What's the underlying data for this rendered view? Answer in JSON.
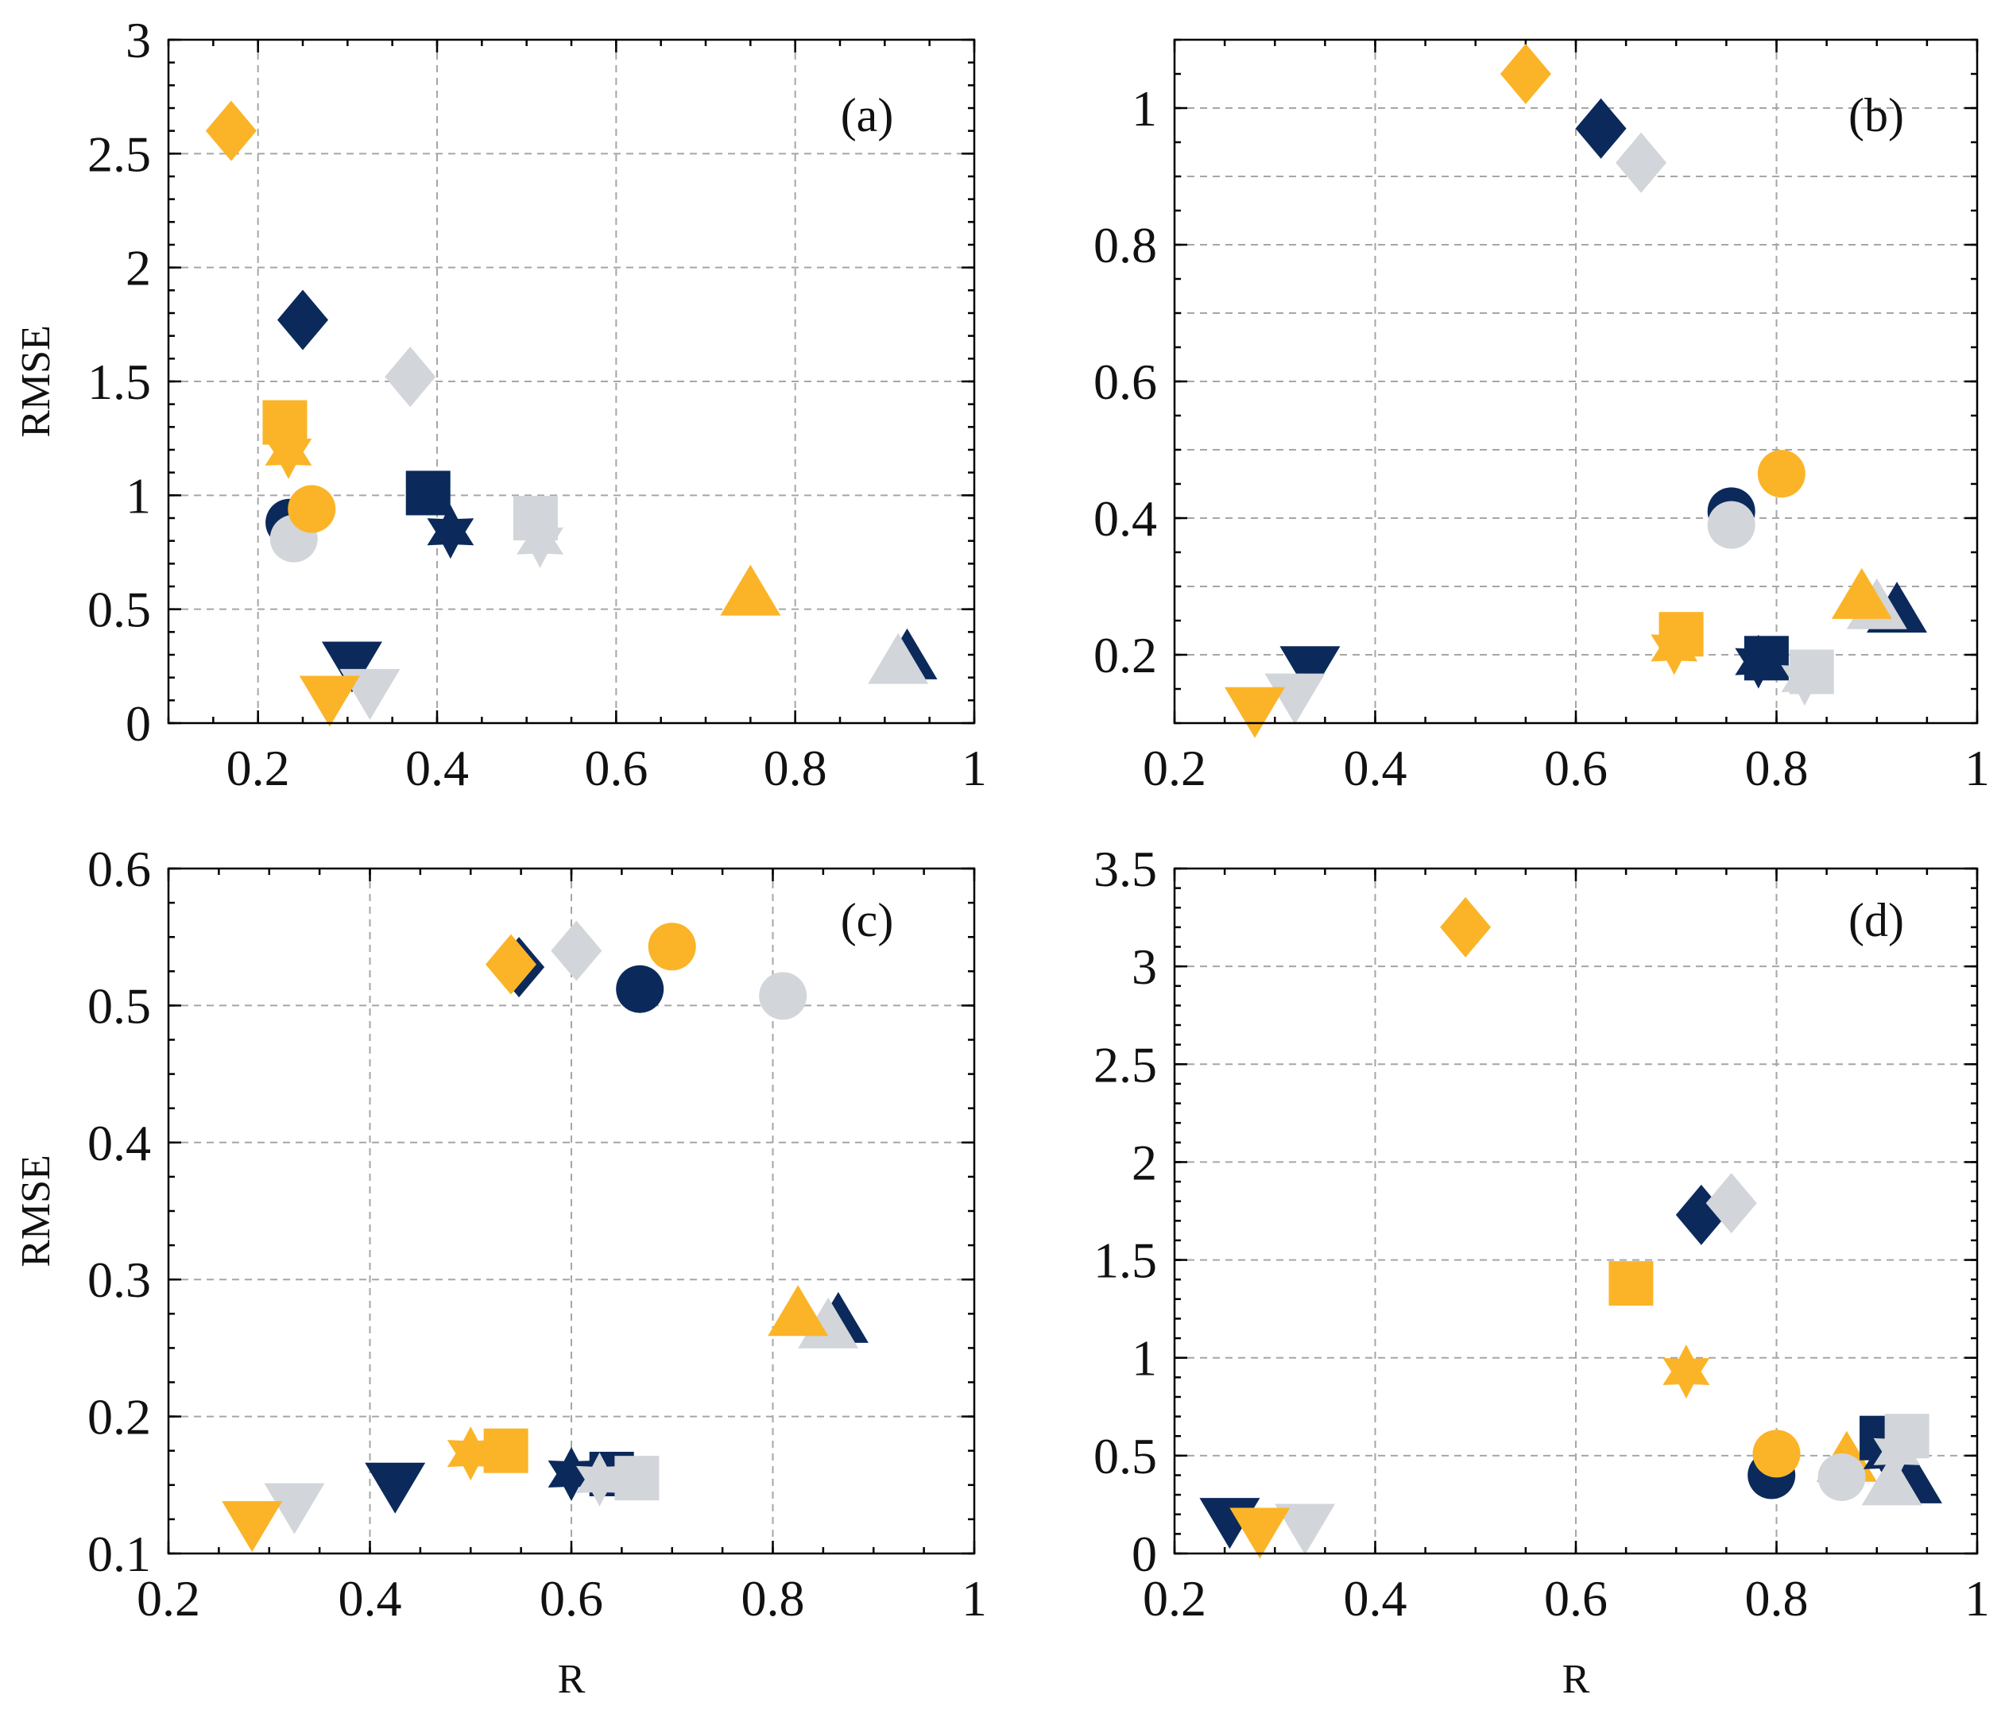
{
  "colors": {
    "navy": "#0b2a5b",
    "gold": "#fbb427",
    "gray": "#d2d5da"
  },
  "chart_data": [
    {
      "panel": "(a)",
      "type": "scatter",
      "xlabel": "",
      "ylabel": "RMSE",
      "xlim": [
        0.1,
        1.0
      ],
      "ylim": [
        0,
        3
      ],
      "xticks": [
        0.2,
        0.4,
        0.6,
        0.8,
        1
      ],
      "xtick_labels": [
        "0.2",
        "0.4",
        "0.6",
        "0.8",
        "1"
      ],
      "yticks": [
        0,
        0.5,
        1,
        1.5,
        2,
        2.5,
        3
      ],
      "ytick_labels": [
        "0",
        "0.5",
        "1",
        "1.5",
        "2",
        "2.5",
        "3"
      ],
      "xminor": 0.05,
      "yminor": 0.1,
      "grid": true,
      "points": [
        {
          "shape": "diamond",
          "color": "gold",
          "x": 0.17,
          "y": 2.6
        },
        {
          "shape": "diamond",
          "color": "navy",
          "x": 0.25,
          "y": 1.77
        },
        {
          "shape": "diamond",
          "color": "gray",
          "x": 0.37,
          "y": 1.52
        },
        {
          "shape": "square",
          "color": "gold",
          "x": 0.23,
          "y": 1.32
        },
        {
          "shape": "star",
          "color": "gold",
          "x": 0.234,
          "y": 1.19
        },
        {
          "shape": "circle",
          "color": "navy",
          "x": 0.235,
          "y": 0.88
        },
        {
          "shape": "circle",
          "color": "gray",
          "x": 0.24,
          "y": 0.81
        },
        {
          "shape": "circle",
          "color": "gold",
          "x": 0.26,
          "y": 0.94
        },
        {
          "shape": "square",
          "color": "navy",
          "x": 0.39,
          "y": 1.01
        },
        {
          "shape": "star",
          "color": "navy",
          "x": 0.415,
          "y": 0.84
        },
        {
          "shape": "square",
          "color": "gray",
          "x": 0.51,
          "y": 0.9
        },
        {
          "shape": "star",
          "color": "gray",
          "x": 0.515,
          "y": 0.8
        },
        {
          "shape": "triangle-up",
          "color": "gold",
          "x": 0.75,
          "y": 0.57
        },
        {
          "shape": "triangle-up",
          "color": "navy",
          "x": 0.925,
          "y": 0.29
        },
        {
          "shape": "triangle-up",
          "color": "gray",
          "x": 0.915,
          "y": 0.27
        },
        {
          "shape": "triangle-down",
          "color": "navy",
          "x": 0.305,
          "y": 0.26
        },
        {
          "shape": "triangle-down",
          "color": "gray",
          "x": 0.325,
          "y": 0.14
        },
        {
          "shape": "triangle-down",
          "color": "gold",
          "x": 0.28,
          "y": 0.11
        }
      ]
    },
    {
      "panel": "(b)",
      "type": "scatter",
      "xlabel": "",
      "ylabel": "",
      "xlim": [
        0.2,
        1.0
      ],
      "ylim": [
        0.1,
        1.1
      ],
      "xticks": [
        0.2,
        0.4,
        0.6,
        0.8,
        1
      ],
      "xtick_labels": [
        "0.2",
        "0.4",
        "0.6",
        "0.8",
        "1"
      ],
      "yticks": [
        0.2,
        0.4,
        0.6,
        0.8,
        1
      ],
      "ytick_labels": [
        "0.2",
        "0.4",
        "0.6",
        "0.8",
        "1"
      ],
      "ygrid": [
        0.2,
        0.3,
        0.4,
        0.5,
        0.6,
        0.7,
        0.8,
        0.9,
        1.0
      ],
      "xminor": 0.05,
      "yminor": 0.05,
      "grid": true,
      "points": [
        {
          "shape": "diamond",
          "color": "gold",
          "x": 0.55,
          "y": 1.05
        },
        {
          "shape": "diamond",
          "color": "navy",
          "x": 0.625,
          "y": 0.97
        },
        {
          "shape": "diamond",
          "color": "gray",
          "x": 0.665,
          "y": 0.92
        },
        {
          "shape": "circle",
          "color": "navy",
          "x": 0.755,
          "y": 0.41
        },
        {
          "shape": "circle",
          "color": "gray",
          "x": 0.755,
          "y": 0.39
        },
        {
          "shape": "circle",
          "color": "gold",
          "x": 0.805,
          "y": 0.465
        },
        {
          "shape": "square",
          "color": "gold",
          "x": 0.705,
          "y": 0.23
        },
        {
          "shape": "star",
          "color": "gold",
          "x": 0.698,
          "y": 0.21
        },
        {
          "shape": "square",
          "color": "navy",
          "x": 0.79,
          "y": 0.195
        },
        {
          "shape": "star",
          "color": "navy",
          "x": 0.782,
          "y": 0.19
        },
        {
          "shape": "square",
          "color": "gray",
          "x": 0.835,
          "y": 0.175
        },
        {
          "shape": "star",
          "color": "gray",
          "x": 0.828,
          "y": 0.165
        },
        {
          "shape": "triangle-up",
          "color": "navy",
          "x": 0.92,
          "y": 0.265
        },
        {
          "shape": "triangle-up",
          "color": "gray",
          "x": 0.9,
          "y": 0.27
        },
        {
          "shape": "triangle-up",
          "color": "gold",
          "x": 0.885,
          "y": 0.285
        },
        {
          "shape": "triangle-down",
          "color": "navy",
          "x": 0.335,
          "y": 0.18
        },
        {
          "shape": "triangle-down",
          "color": "gray",
          "x": 0.32,
          "y": 0.14
        },
        {
          "shape": "triangle-down",
          "color": "gold",
          "x": 0.28,
          "y": 0.12
        }
      ]
    },
    {
      "panel": "(c)",
      "type": "scatter",
      "xlabel": "R",
      "ylabel": "RMSE",
      "xlim": [
        0.2,
        1.0
      ],
      "ylim": [
        0.1,
        0.6
      ],
      "xticks": [
        0.2,
        0.4,
        0.6,
        0.8,
        1
      ],
      "xtick_labels": [
        "0.2",
        "0.4",
        "0.6",
        "0.8",
        "1"
      ],
      "yticks": [
        0.1,
        0.2,
        0.3,
        0.4,
        0.5,
        0.6
      ],
      "ytick_labels": [
        "0.1",
        "0.2",
        "0.3",
        "0.4",
        "0.5",
        "0.6"
      ],
      "xminor": 0.05,
      "yminor": 0.025,
      "grid": true,
      "points": [
        {
          "shape": "diamond",
          "color": "navy",
          "x": 0.548,
          "y": 0.528
        },
        {
          "shape": "diamond",
          "color": "gold",
          "x": 0.54,
          "y": 0.53
        },
        {
          "shape": "diamond",
          "color": "gray",
          "x": 0.605,
          "y": 0.54
        },
        {
          "shape": "circle",
          "color": "gold",
          "x": 0.7,
          "y": 0.543
        },
        {
          "shape": "circle",
          "color": "navy",
          "x": 0.668,
          "y": 0.512
        },
        {
          "shape": "circle",
          "color": "gray",
          "x": 0.81,
          "y": 0.507
        },
        {
          "shape": "triangle-up",
          "color": "navy",
          "x": 0.865,
          "y": 0.27
        },
        {
          "shape": "triangle-up",
          "color": "gray",
          "x": 0.855,
          "y": 0.266
        },
        {
          "shape": "triangle-up",
          "color": "gold",
          "x": 0.825,
          "y": 0.275
        },
        {
          "shape": "triangle-down",
          "color": "navy",
          "x": 0.425,
          "y": 0.15
        },
        {
          "shape": "triangle-down",
          "color": "gray",
          "x": 0.325,
          "y": 0.135
        },
        {
          "shape": "triangle-down",
          "color": "gold",
          "x": 0.283,
          "y": 0.122
        },
        {
          "shape": "star",
          "color": "gold",
          "x": 0.5,
          "y": 0.173
        },
        {
          "shape": "square",
          "color": "gold",
          "x": 0.535,
          "y": 0.175
        },
        {
          "shape": "square",
          "color": "navy",
          "x": 0.64,
          "y": 0.158
        },
        {
          "shape": "star",
          "color": "navy",
          "x": 0.6,
          "y": 0.158
        },
        {
          "shape": "star",
          "color": "gray",
          "x": 0.628,
          "y": 0.154
        },
        {
          "shape": "square",
          "color": "gray",
          "x": 0.665,
          "y": 0.155
        }
      ]
    },
    {
      "panel": "(d)",
      "type": "scatter",
      "xlabel": "R",
      "ylabel": "",
      "xlim": [
        0.2,
        1.0
      ],
      "ylim": [
        0,
        3.5
      ],
      "xticks": [
        0.2,
        0.4,
        0.6,
        0.8,
        1
      ],
      "xtick_labels": [
        "0.2",
        "0.4",
        "0.6",
        "0.8",
        "1"
      ],
      "yticks": [
        0,
        0.5,
        1,
        1.5,
        2,
        2.5,
        3,
        3.5
      ],
      "ytick_labels": [
        "0",
        "0.5",
        "1",
        "1.5",
        "2",
        "2.5",
        "3",
        "3.5"
      ],
      "xminor": 0.05,
      "yminor": 0.1,
      "grid": true,
      "points": [
        {
          "shape": "diamond",
          "color": "gold",
          "x": 0.49,
          "y": 3.2
        },
        {
          "shape": "diamond",
          "color": "navy",
          "x": 0.725,
          "y": 1.73
        },
        {
          "shape": "diamond",
          "color": "gray",
          "x": 0.755,
          "y": 1.79
        },
        {
          "shape": "square",
          "color": "gold",
          "x": 0.655,
          "y": 1.38
        },
        {
          "shape": "star",
          "color": "gold",
          "x": 0.71,
          "y": 0.93
        },
        {
          "shape": "triangle-up",
          "color": "gold",
          "x": 0.87,
          "y": 0.48
        },
        {
          "shape": "circle",
          "color": "navy",
          "x": 0.795,
          "y": 0.4
        },
        {
          "shape": "circle",
          "color": "gold",
          "x": 0.8,
          "y": 0.51
        },
        {
          "shape": "circle",
          "color": "gray",
          "x": 0.865,
          "y": 0.39
        },
        {
          "shape": "square",
          "color": "navy",
          "x": 0.905,
          "y": 0.59
        },
        {
          "shape": "star",
          "color": "navy",
          "x": 0.91,
          "y": 0.5
        },
        {
          "shape": "triangle-up",
          "color": "navy",
          "x": 0.935,
          "y": 0.37
        },
        {
          "shape": "triangle-up",
          "color": "gray",
          "x": 0.915,
          "y": 0.36
        },
        {
          "shape": "star",
          "color": "gray",
          "x": 0.92,
          "y": 0.52
        },
        {
          "shape": "square",
          "color": "gray",
          "x": 0.93,
          "y": 0.6
        },
        {
          "shape": "triangle-down",
          "color": "navy",
          "x": 0.255,
          "y": 0.17
        },
        {
          "shape": "triangle-down",
          "color": "gray",
          "x": 0.33,
          "y": 0.14
        },
        {
          "shape": "triangle-down",
          "color": "gold",
          "x": 0.285,
          "y": 0.12
        }
      ]
    }
  ]
}
